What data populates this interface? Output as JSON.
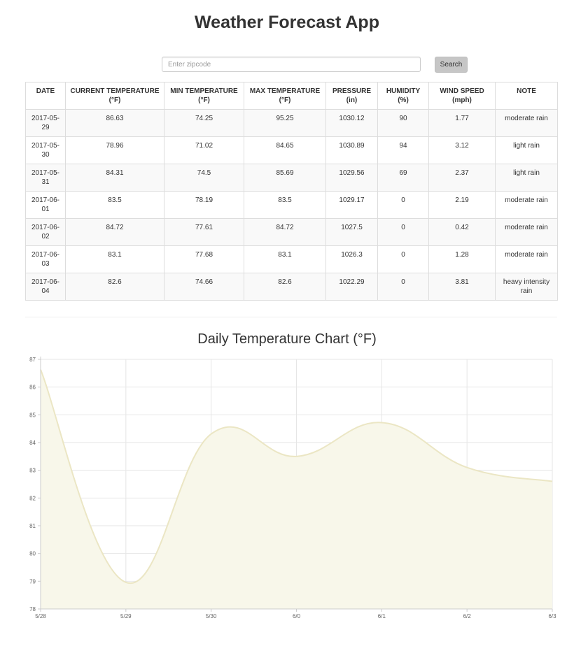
{
  "app": {
    "title": "Weather Forecast App"
  },
  "search": {
    "placeholder": "Enter zipcode",
    "value": "",
    "button_label": "Search"
  },
  "table": {
    "headers": [
      {
        "line1": "DATE",
        "line2": ""
      },
      {
        "line1": "CURRENT TEMPERATURE",
        "line2": "(°F)"
      },
      {
        "line1": "MIN TEMPERATURE",
        "line2": "(°F)"
      },
      {
        "line1": "MAX TEMPERATURE",
        "line2": "(°F)"
      },
      {
        "line1": "PRESSURE",
        "line2": "(in)"
      },
      {
        "line1": "HUMIDITY",
        "line2": "(%)"
      },
      {
        "line1": "WIND SPEED",
        "line2": "(mph)"
      },
      {
        "line1": "NOTE",
        "line2": ""
      }
    ],
    "rows": [
      {
        "date": "2017-05-29",
        "current": "86.63",
        "min": "74.25",
        "max": "95.25",
        "pressure": "1030.12",
        "humidity": "90",
        "wind": "1.77",
        "note": "moderate rain"
      },
      {
        "date": "2017-05-30",
        "current": "78.96",
        "min": "71.02",
        "max": "84.65",
        "pressure": "1030.89",
        "humidity": "94",
        "wind": "3.12",
        "note": "light rain"
      },
      {
        "date": "2017-05-31",
        "current": "84.31",
        "min": "74.5",
        "max": "85.69",
        "pressure": "1029.56",
        "humidity": "69",
        "wind": "2.37",
        "note": "light rain"
      },
      {
        "date": "2017-06-01",
        "current": "83.5",
        "min": "78.19",
        "max": "83.5",
        "pressure": "1029.17",
        "humidity": "0",
        "wind": "2.19",
        "note": "moderate rain"
      },
      {
        "date": "2017-06-02",
        "current": "84.72",
        "min": "77.61",
        "max": "84.72",
        "pressure": "1027.5",
        "humidity": "0",
        "wind": "0.42",
        "note": "moderate rain"
      },
      {
        "date": "2017-06-03",
        "current": "83.1",
        "min": "77.68",
        "max": "83.1",
        "pressure": "1026.3",
        "humidity": "0",
        "wind": "1.28",
        "note": "moderate rain"
      },
      {
        "date": "2017-06-04",
        "current": "82.6",
        "min": "74.66",
        "max": "82.6",
        "pressure": "1022.29",
        "humidity": "0",
        "wind": "3.81",
        "note": "heavy intensity rain"
      }
    ]
  },
  "chart_data": {
    "type": "area",
    "title": "Daily Temperature Chart (°F)",
    "xlabel": "",
    "ylabel": "",
    "x": [
      "5/28",
      "5/29",
      "5/30",
      "6/0",
      "6/1",
      "6/2",
      "6/3"
    ],
    "series": [
      {
        "values": [
          86.63,
          78.96,
          84.31,
          83.5,
          84.72,
          83.1,
          82.6
        ]
      }
    ],
    "ylim": [
      78,
      87
    ],
    "yticks": [
      "78",
      "79",
      "80",
      "81",
      "82",
      "83",
      "84",
      "85",
      "86",
      "87"
    ],
    "grid": true,
    "legend": "none",
    "colors": {
      "line": "#ebe6c4",
      "fill": "#f8f7ea",
      "grid": "#e6e6e6",
      "axis": "#cccccc"
    }
  }
}
